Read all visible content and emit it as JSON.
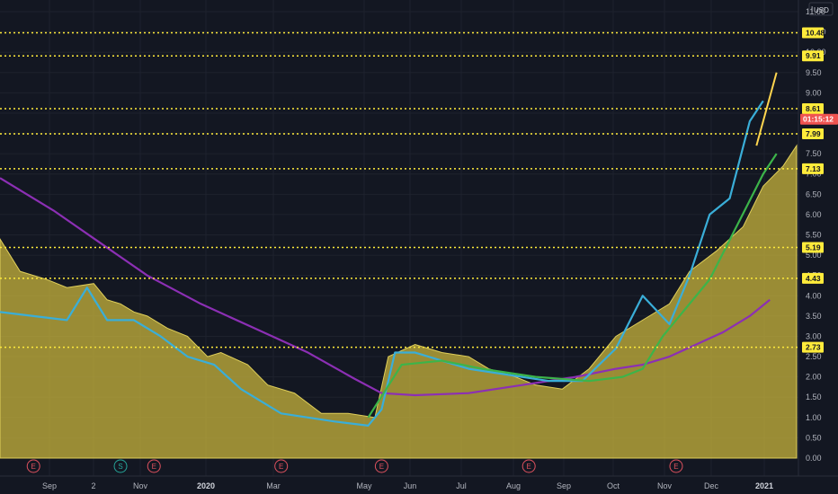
{
  "chart_data": {
    "type": "line",
    "currency": "USD",
    "scale_mode_label": "I",
    "x_labels": [
      "Sep",
      "2",
      "Nov",
      "2020",
      "Mar",
      "May",
      "Jun",
      "Jul",
      "Aug",
      "Sep",
      "Oct",
      "Nov",
      "Dec",
      "2021"
    ],
    "y_ticks": [
      "11.00",
      "10.50",
      "10.00",
      "9.50",
      "9.00",
      "8.50",
      "8.00",
      "7.50",
      "7.00",
      "6.50",
      "6.00",
      "5.50",
      "5.00",
      "4.50",
      "4.00",
      "3.50",
      "3.00",
      "2.50",
      "2.00",
      "1.50",
      "1.00",
      "0.50",
      "0.00"
    ],
    "ylim": [
      0,
      11.4
    ],
    "horizontal_levels": [
      10.48,
      9.91,
      8.61,
      7.99,
      7.13,
      5.19,
      4.43,
      2.73
    ],
    "horizontal_level_labels": [
      "10.48",
      "9.91",
      "8.61",
      "7.99",
      "7.13",
      "5.19",
      "4.43",
      "2.73"
    ],
    "last_price_countdown": "01:15:12",
    "series": [
      {
        "name": "",
        "color": "#c8b43c",
        "values": [
          [
            0,
            5.4
          ],
          [
            3,
            4.6
          ],
          [
            7,
            4.4
          ],
          [
            10,
            4.2
          ],
          [
            14,
            4.3
          ],
          [
            16,
            3.9
          ],
          [
            18,
            3.8
          ],
          [
            20,
            3.6
          ],
          [
            22,
            3.5
          ],
          [
            25,
            3.2
          ],
          [
            28,
            3.0
          ],
          [
            31,
            2.5
          ],
          [
            33,
            2.6
          ],
          [
            37,
            2.3
          ],
          [
            40,
            1.8
          ],
          [
            44,
            1.6
          ],
          [
            48,
            1.1
          ],
          [
            52,
            1.1
          ],
          [
            56,
            1.0
          ],
          [
            58,
            2.5
          ],
          [
            62,
            2.8
          ],
          [
            66,
            2.6
          ],
          [
            70,
            2.5
          ],
          [
            73,
            2.2
          ],
          [
            77,
            2.0
          ],
          [
            80,
            1.8
          ],
          [
            84,
            1.7
          ],
          [
            88,
            2.2
          ],
          [
            92,
            3.0
          ],
          [
            96,
            3.4
          ],
          [
            100,
            3.8
          ],
          [
            103,
            4.6
          ],
          [
            107,
            5.1
          ],
          [
            111,
            5.7
          ],
          [
            114,
            6.7
          ],
          [
            117,
            7.2
          ],
          [
            119,
            7.7
          ]
        ]
      },
      {
        "name": "",
        "color": "#8c2fb4",
        "values": [
          [
            0,
            6.9
          ],
          [
            8,
            6.1
          ],
          [
            15,
            5.3
          ],
          [
            22,
            4.5
          ],
          [
            30,
            3.8
          ],
          [
            38,
            3.2
          ],
          [
            46,
            2.6
          ],
          [
            53,
            1.95
          ],
          [
            57,
            1.6
          ],
          [
            62,
            1.55
          ],
          [
            70,
            1.6
          ],
          [
            78,
            1.8
          ],
          [
            86,
            2.0
          ],
          [
            92,
            2.2
          ],
          [
            96,
            2.3
          ],
          [
            100,
            2.5
          ],
          [
            104,
            2.8
          ],
          [
            108,
            3.1
          ],
          [
            112,
            3.5
          ],
          [
            115,
            3.9
          ]
        ]
      },
      {
        "name": "",
        "color": "#3aaed8",
        "values": [
          [
            0,
            3.6
          ],
          [
            5,
            3.5
          ],
          [
            10,
            3.4
          ],
          [
            13,
            4.2
          ],
          [
            16,
            3.4
          ],
          [
            20,
            3.4
          ],
          [
            24,
            3.0
          ],
          [
            28,
            2.5
          ],
          [
            32,
            2.3
          ],
          [
            36,
            1.7
          ],
          [
            42,
            1.1
          ],
          [
            46,
            1.0
          ],
          [
            50,
            0.9
          ],
          [
            55,
            0.8
          ],
          [
            57,
            1.2
          ],
          [
            59,
            2.6
          ],
          [
            62,
            2.6
          ],
          [
            66,
            2.4
          ],
          [
            70,
            2.2
          ],
          [
            74,
            2.1
          ],
          [
            78,
            2.0
          ],
          [
            82,
            1.9
          ],
          [
            87,
            1.9
          ],
          [
            92,
            2.7
          ],
          [
            96,
            4.0
          ],
          [
            100,
            3.3
          ],
          [
            103,
            4.5
          ],
          [
            106,
            6.0
          ],
          [
            109,
            6.4
          ],
          [
            112,
            8.3
          ],
          [
            114,
            8.8
          ]
        ]
      },
      {
        "name": "",
        "color": "#3cb44a",
        "values": [
          [
            55,
            1.0
          ],
          [
            60,
            2.3
          ],
          [
            66,
            2.4
          ],
          [
            72,
            2.2
          ],
          [
            80,
            2.0
          ],
          [
            88,
            1.9
          ],
          [
            93,
            2.0
          ],
          [
            96,
            2.2
          ],
          [
            99,
            3.0
          ],
          [
            102,
            3.6
          ],
          [
            106,
            4.4
          ],
          [
            110,
            5.7
          ],
          [
            114,
            7.0
          ],
          [
            116,
            7.5
          ]
        ]
      },
      {
        "name": "",
        "color": "#ffd54f",
        "values": [
          [
            113,
            7.7
          ],
          [
            116,
            9.5
          ]
        ]
      }
    ],
    "event_markers": [
      {
        "label": "E",
        "color": "#e0525f",
        "x": 5
      },
      {
        "label": "S",
        "color": "#26a69a",
        "x": 18
      },
      {
        "label": "E",
        "color": "#e0525f",
        "x": 23
      },
      {
        "label": "E",
        "color": "#e0525f",
        "x": 42
      },
      {
        "label": "E",
        "color": "#e0525f",
        "x": 57
      },
      {
        "label": "E",
        "color": "#e0525f",
        "x": 79
      },
      {
        "label": "E",
        "color": "#e0525f",
        "x": 101
      }
    ]
  }
}
